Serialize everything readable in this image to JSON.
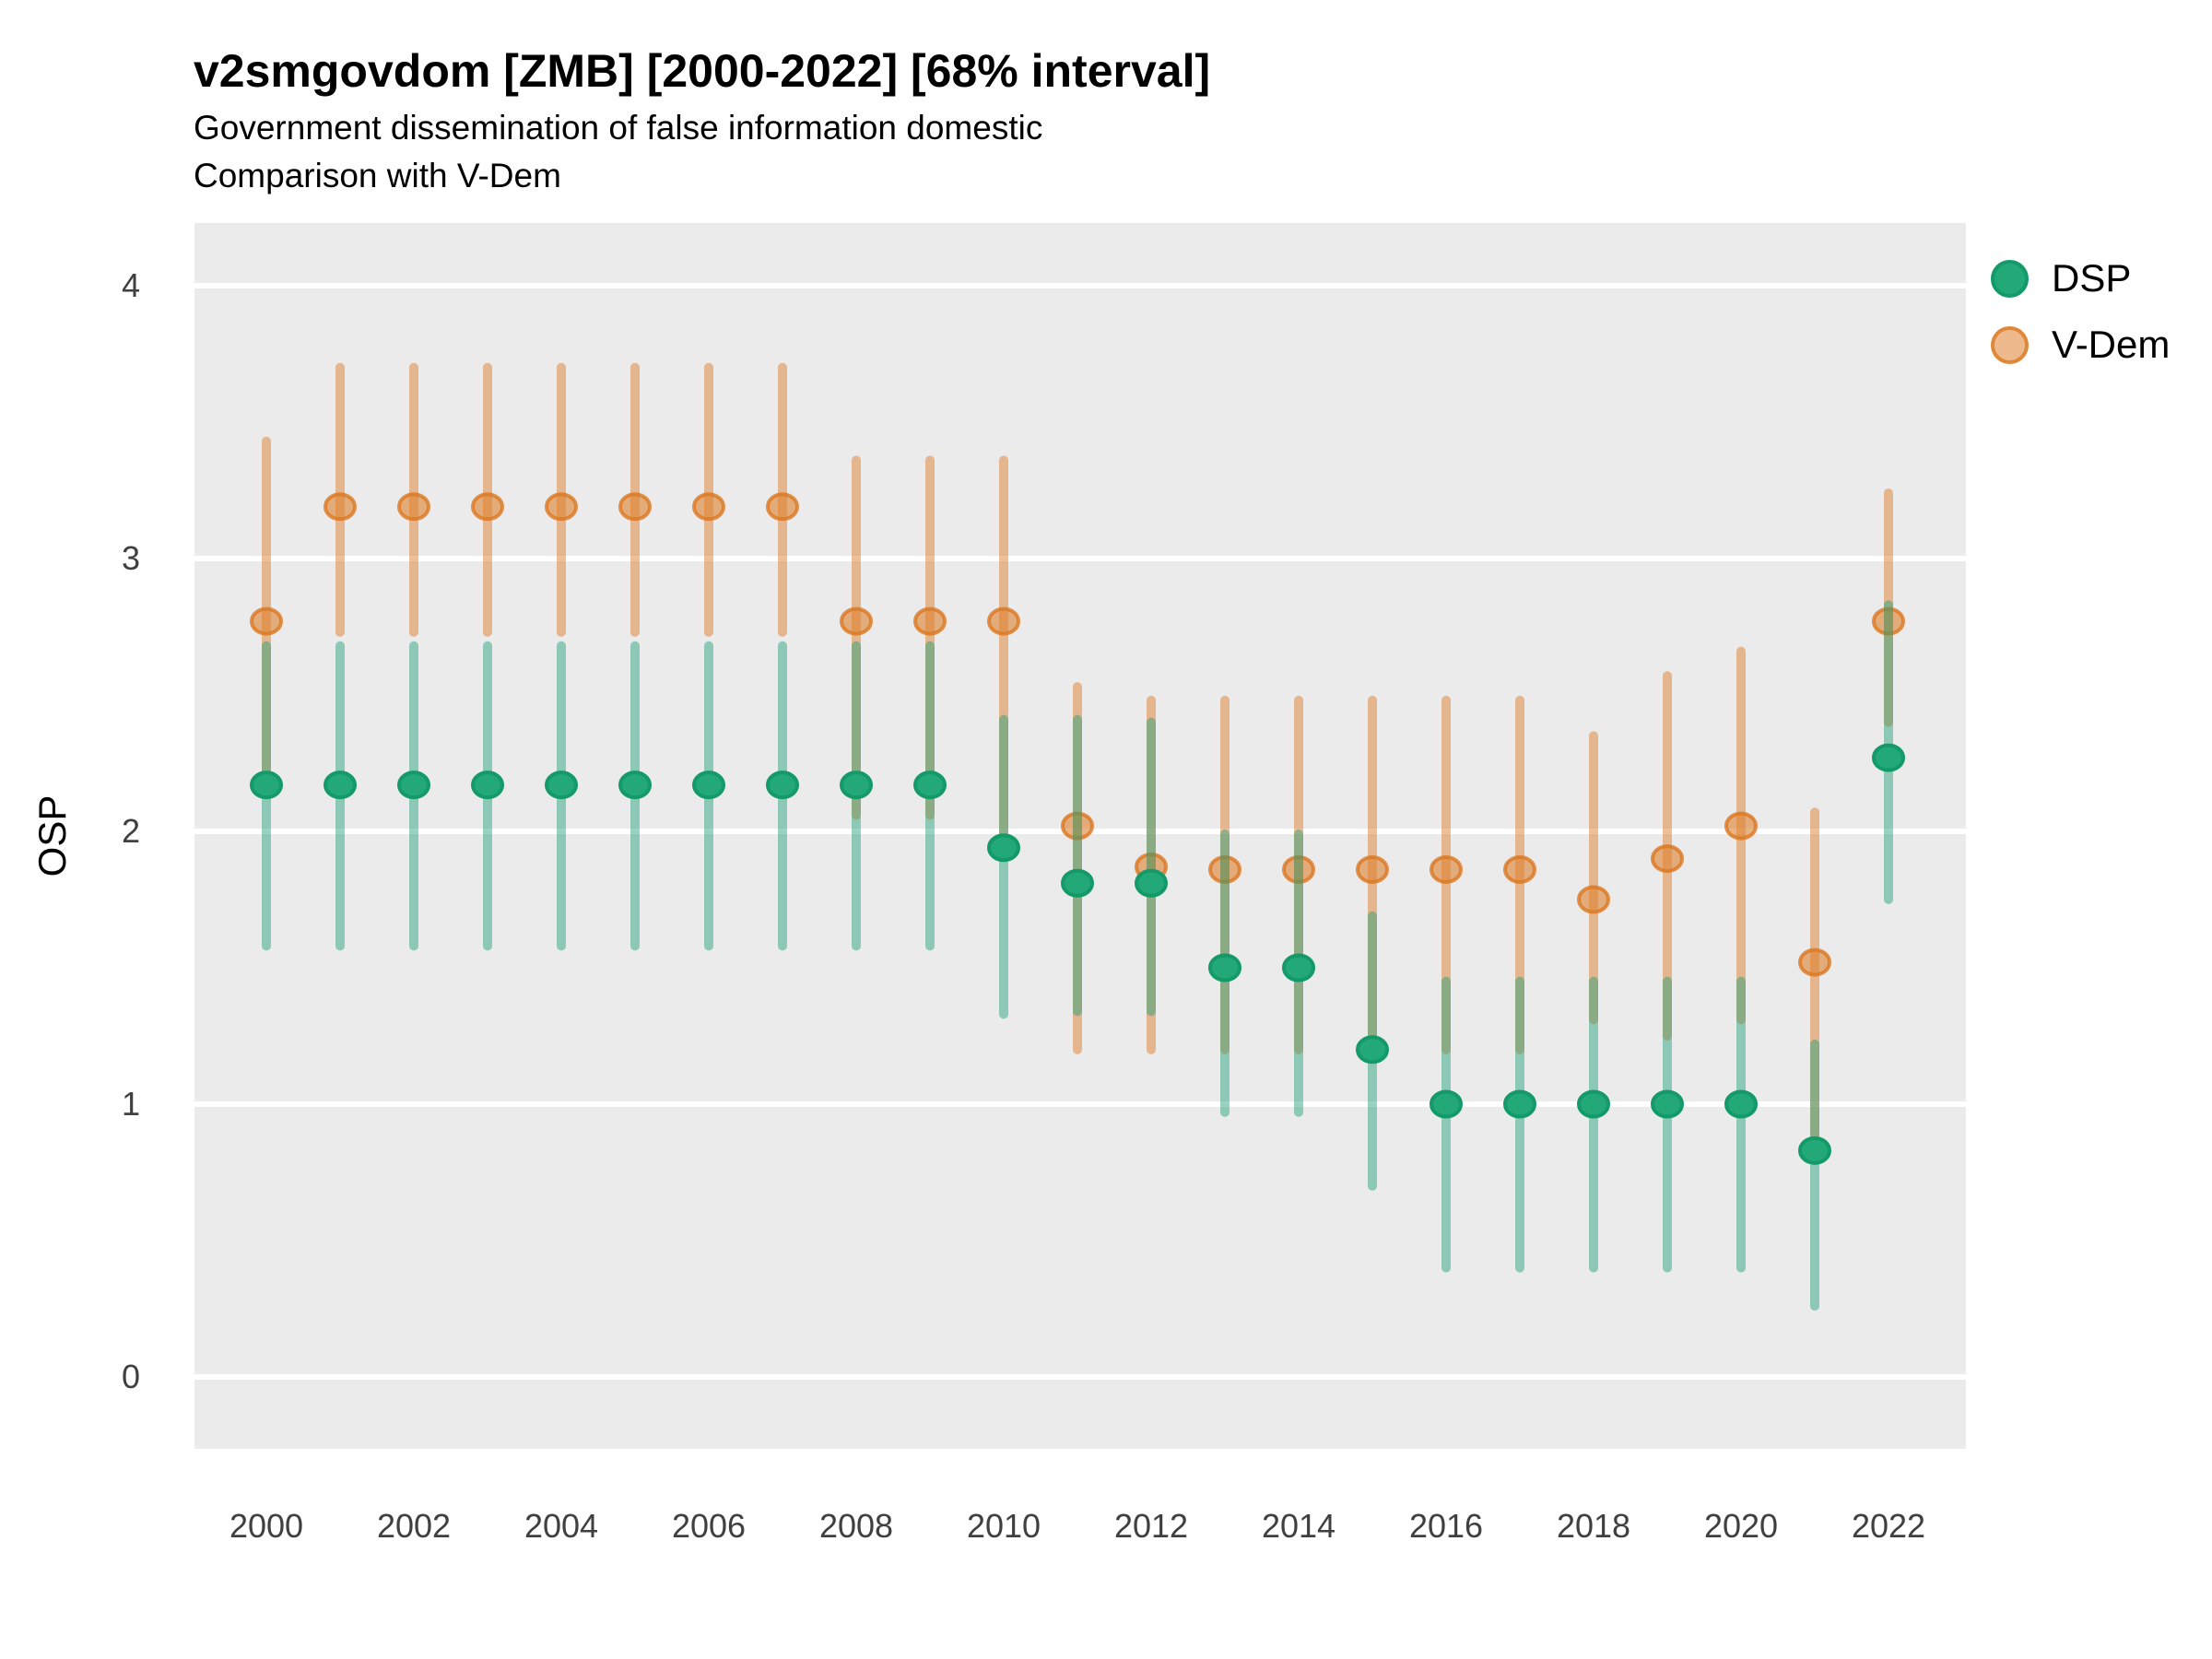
{
  "title": "v2smgovdom [ZMB] [2000-2022] [68% interval]",
  "subtitle1": "Government dissemination of false information domestic",
  "subtitle2": "Comparison with V-Dem",
  "ylabel": "OSP",
  "legend": {
    "items": [
      {
        "label": "DSP",
        "color": "#23A877"
      },
      {
        "label": "V-Dem",
        "color": "#E0812F"
      }
    ]
  },
  "colors": {
    "panel_background": "#EBEBEB",
    "gridline": "#FFFFFF",
    "dsp_point_fill": "#23A877",
    "dsp_point_stroke": "#149A68",
    "dsp_line": "#1B9E77",
    "vdem_line": "#E0812F",
    "vdem_point_stroke": "#DB771F",
    "axis_text": "#404040"
  },
  "chart_data": {
    "type": "pointrange",
    "title": "v2smgovdom [ZMB] [2000-2022] [68% interval]",
    "subtitle": [
      "Government dissemination of false information domestic",
      "Comparison with V-Dem"
    ],
    "interval_label": "68% interval",
    "xlabel": "",
    "ylabel": "OSP",
    "ylim": [
      -0.26,
      4.26
    ],
    "y_ticks": [
      0,
      1,
      2,
      3,
      4
    ],
    "x_tick_labels": [
      2000,
      2002,
      2004,
      2006,
      2008,
      2010,
      2012,
      2014,
      2016,
      2018,
      2020,
      2022
    ],
    "grid": "horizontal-only",
    "legend_position": "top-right",
    "x": [
      2000,
      2001,
      2002,
      2003,
      2004,
      2005,
      2006,
      2007,
      2008,
      2009,
      2010,
      2011,
      2012,
      2013,
      2014,
      2015,
      2016,
      2017,
      2018,
      2019,
      2020,
      2021,
      2022
    ],
    "series": [
      {
        "name": "V-Dem",
        "mid": [
          2.77,
          3.19,
          3.19,
          3.19,
          3.19,
          3.19,
          3.19,
          3.19,
          2.77,
          2.77,
          2.77,
          2.02,
          1.87,
          1.86,
          1.86,
          1.86,
          1.86,
          1.86,
          1.75,
          1.9,
          2.02,
          1.52,
          2.77
        ],
        "lo": [
          2.2,
          2.73,
          2.73,
          2.73,
          2.73,
          2.73,
          2.73,
          2.73,
          2.06,
          2.06,
          1.97,
          1.2,
          1.2,
          1.2,
          1.2,
          1.2,
          1.2,
          1.2,
          1.31,
          1.25,
          1.31,
          0.89,
          2.4
        ],
        "hi": [
          3.43,
          3.7,
          3.7,
          3.7,
          3.7,
          3.7,
          3.7,
          3.7,
          3.36,
          3.36,
          3.36,
          2.53,
          2.48,
          2.48,
          2.48,
          2.48,
          2.48,
          2.48,
          2.35,
          2.57,
          2.66,
          2.07,
          3.24
        ]
      },
      {
        "name": "DSP",
        "mid": [
          2.17,
          2.17,
          2.17,
          2.17,
          2.17,
          2.17,
          2.17,
          2.17,
          2.17,
          2.17,
          1.94,
          1.81,
          1.81,
          1.5,
          1.5,
          1.2,
          1.0,
          1.0,
          1.0,
          1.0,
          1.0,
          0.83,
          2.27
        ],
        "lo": [
          1.58,
          1.58,
          1.58,
          1.58,
          1.58,
          1.58,
          1.58,
          1.58,
          1.58,
          1.58,
          1.33,
          1.34,
          1.34,
          0.97,
          0.97,
          0.7,
          0.4,
          0.4,
          0.4,
          0.4,
          0.4,
          0.26,
          1.75
        ],
        "hi": [
          2.68,
          2.68,
          2.68,
          2.68,
          2.68,
          2.68,
          2.68,
          2.68,
          2.68,
          2.68,
          2.41,
          2.41,
          2.4,
          1.99,
          1.99,
          1.69,
          1.45,
          1.45,
          1.45,
          1.45,
          1.45,
          1.22,
          2.83
        ]
      }
    ]
  }
}
